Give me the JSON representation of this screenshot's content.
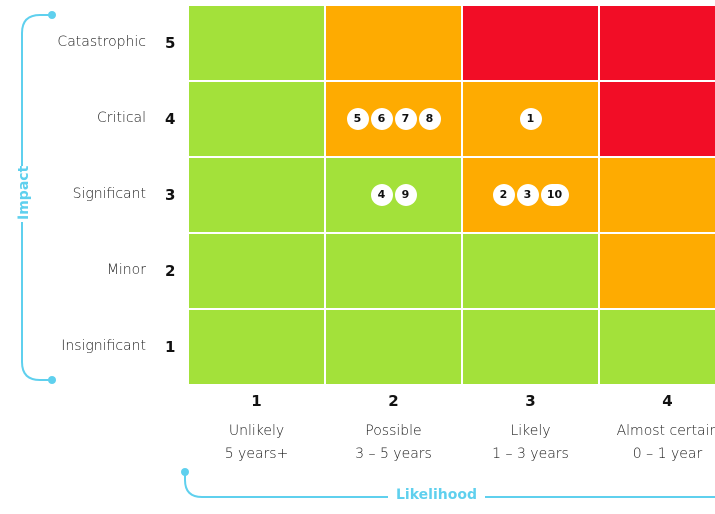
{
  "colors": {
    "green": "#a3e13a",
    "orange": "#feab01",
    "red": "#f20d26",
    "axis": "#5fd0ee"
  },
  "impact_axis": {
    "title": "Impact"
  },
  "likelihood_axis": {
    "title": "Likelihood"
  },
  "rows": [
    {
      "label": "Catastrophic",
      "num": "5"
    },
    {
      "label": "Critical",
      "num": "4"
    },
    {
      "label": "Significant",
      "num": "3"
    },
    {
      "label": "Minor",
      "num": "2"
    },
    {
      "label": "Insignificant",
      "num": "1"
    }
  ],
  "columns": [
    {
      "num": "1",
      "label": "Unlikely",
      "period": "5 years+"
    },
    {
      "num": "2",
      "label": "Possible",
      "period": "3 – 5 years"
    },
    {
      "num": "3",
      "label": "Likely",
      "period": "1 – 3 years"
    },
    {
      "num": "4",
      "label": "Almost certain",
      "period": "0 – 1 year"
    }
  ],
  "grid": [
    [
      "green",
      "orange",
      "red",
      "red"
    ],
    [
      "green",
      "orange",
      "orange",
      "red"
    ],
    [
      "green",
      "green",
      "orange",
      "orange"
    ],
    [
      "green",
      "green",
      "green",
      "orange"
    ],
    [
      "green",
      "green",
      "green",
      "green"
    ]
  ],
  "risks": [
    {
      "id": "5",
      "impact": 4,
      "likelihood": 2
    },
    {
      "id": "6",
      "impact": 4,
      "likelihood": 2
    },
    {
      "id": "7",
      "impact": 4,
      "likelihood": 2
    },
    {
      "id": "8",
      "impact": 4,
      "likelihood": 2
    },
    {
      "id": "1",
      "impact": 4,
      "likelihood": 3
    },
    {
      "id": "4",
      "impact": 3,
      "likelihood": 2
    },
    {
      "id": "9",
      "impact": 3,
      "likelihood": 2
    },
    {
      "id": "2",
      "impact": 3,
      "likelihood": 3
    },
    {
      "id": "3",
      "impact": 3,
      "likelihood": 3
    },
    {
      "id": "10",
      "impact": 3,
      "likelihood": 3
    }
  ]
}
